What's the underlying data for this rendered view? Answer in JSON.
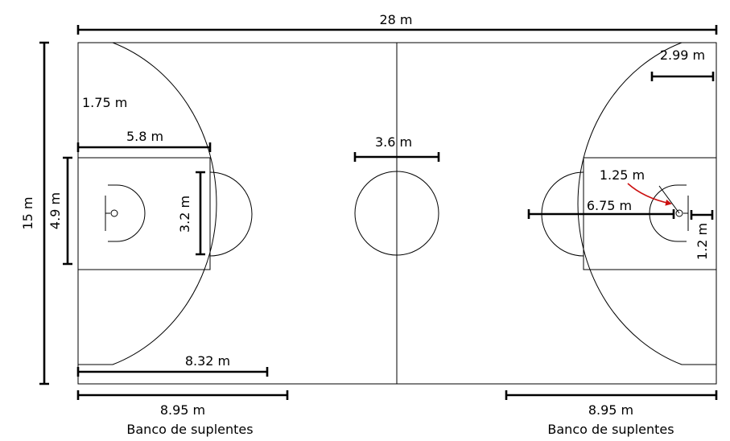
{
  "court_length": "28 m",
  "court_width": "15 m",
  "left_half": {
    "three_point_corner": "1.75 m",
    "lane_length": "5.8 m",
    "lane_width": "4.9 m",
    "free_throw_circle_diameter": "3.2 m",
    "three_point_line_extent": "8.32 m"
  },
  "center_circle_diameter": "3.6 m",
  "right_half": {
    "three_point_corner_offset": "2.99 m",
    "restricted_area_radius": "1.25 m",
    "three_point_radius": "6.75 m",
    "basket_offset": "1.2 m"
  },
  "benches": [
    {
      "length": "8.95 m",
      "label": "Banco de suplentes"
    },
    {
      "length": "8.95 m",
      "label": "Banco de suplentes"
    }
  ],
  "colors": {
    "court_lines": "#000000",
    "pointer_arrow": "#cc1111"
  }
}
